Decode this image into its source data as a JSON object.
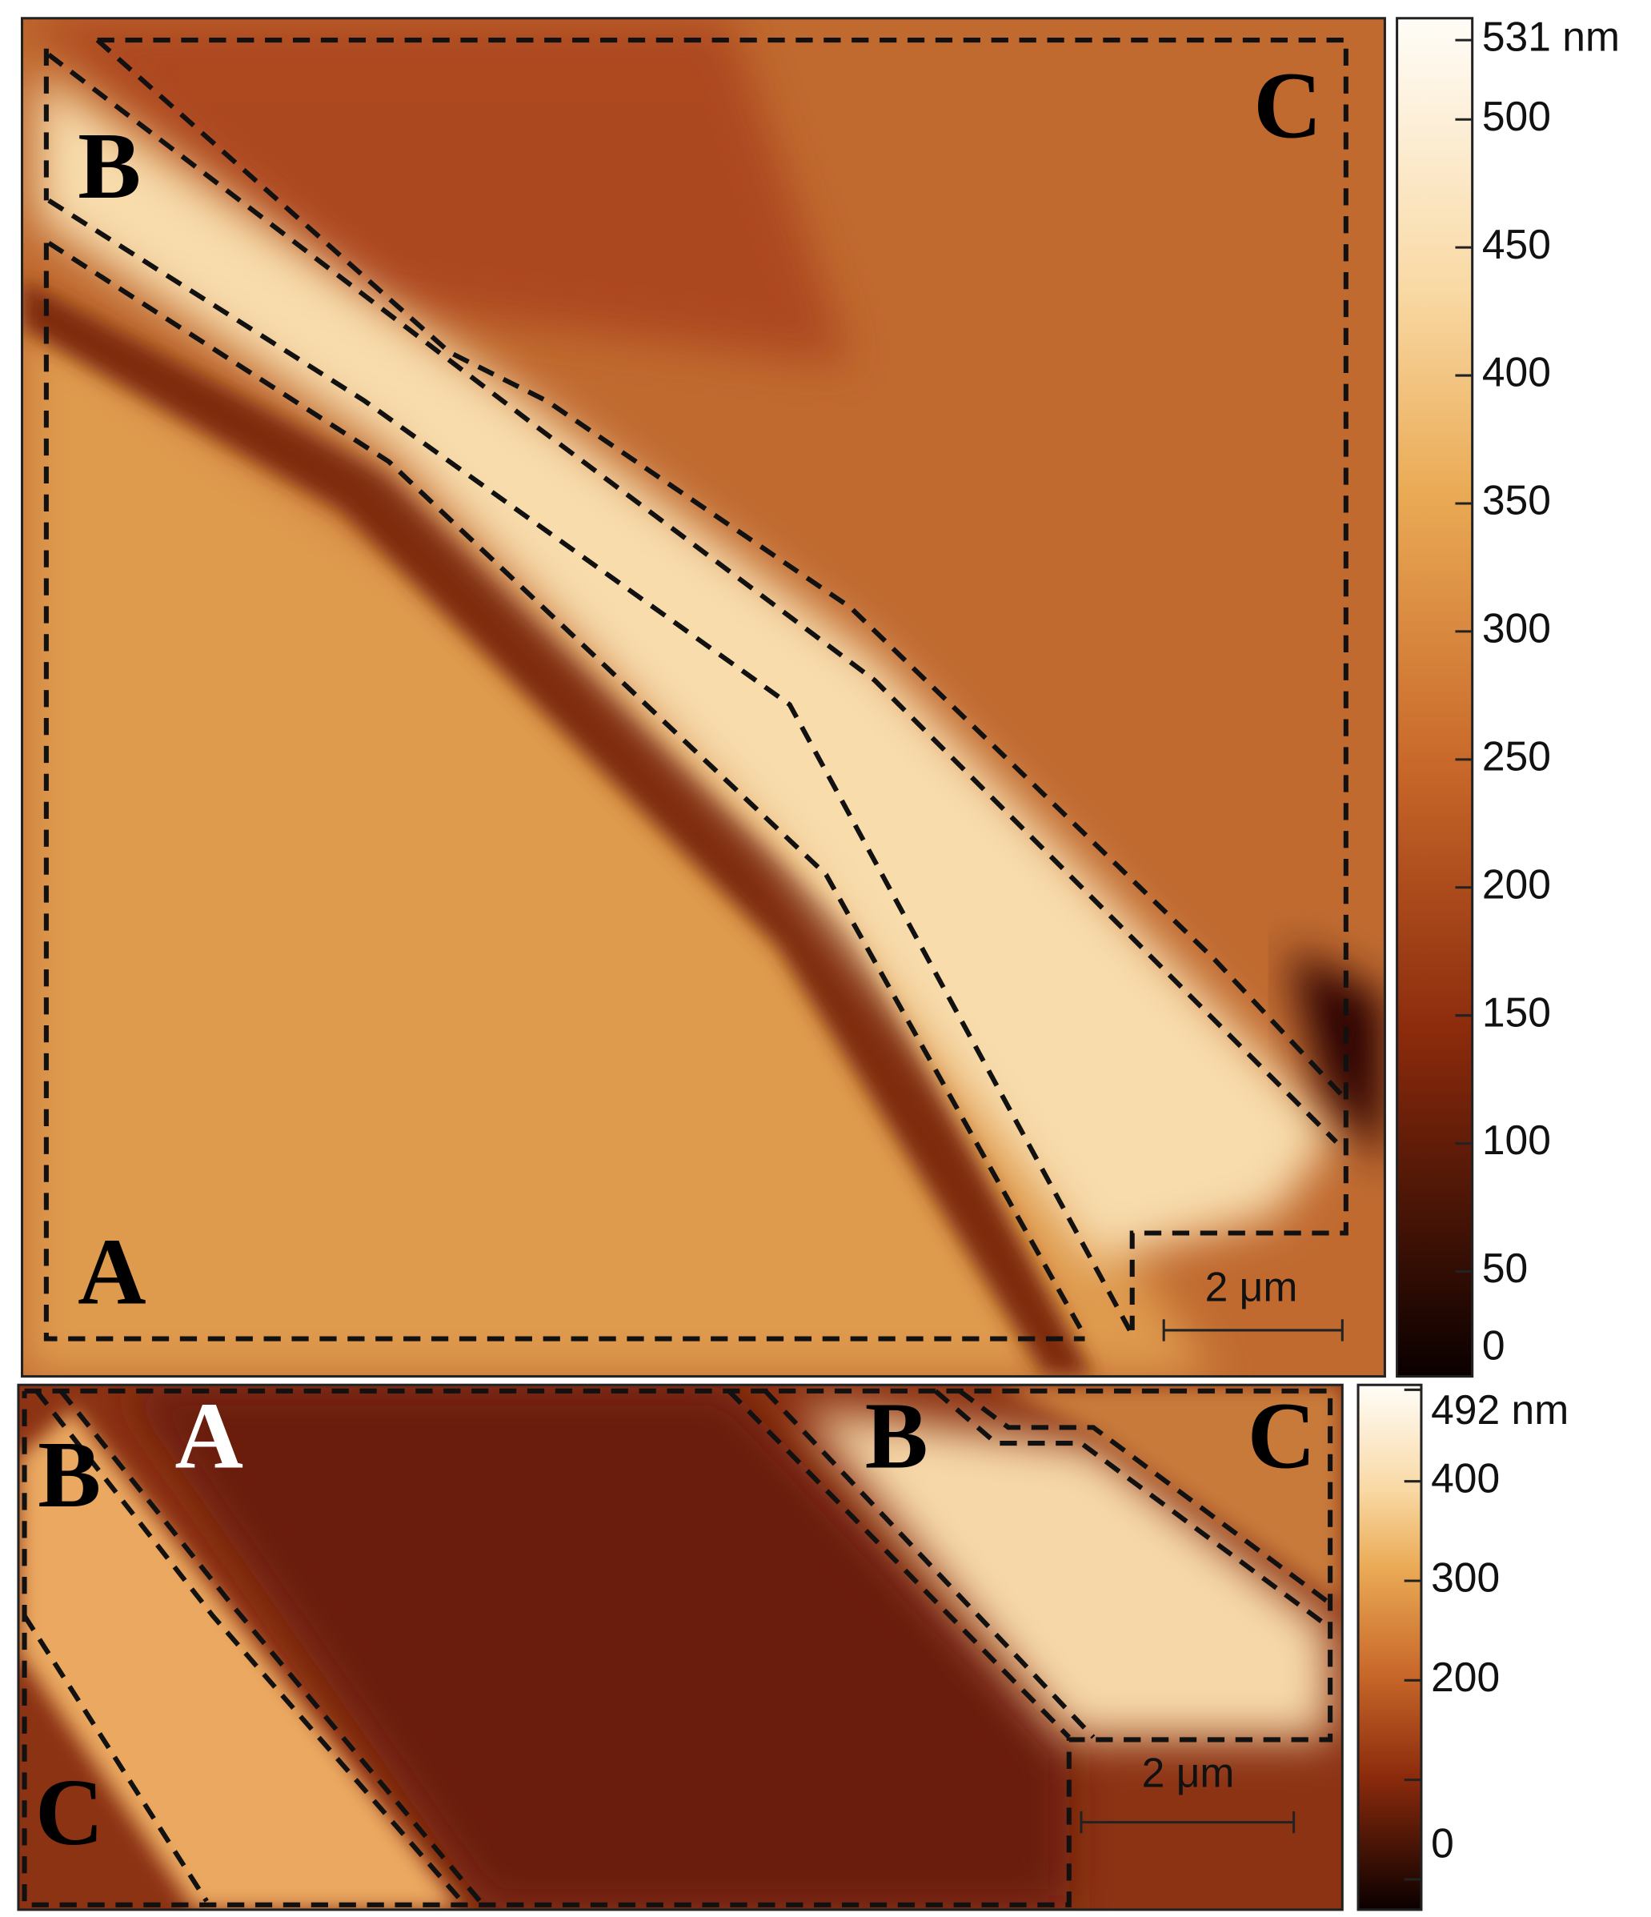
{
  "panels": [
    {
      "region_labels": [
        "A",
        "B",
        "C"
      ],
      "scale_bar": "2 μm",
      "colorbar": {
        "range": [
          0,
          531
        ],
        "ticks": [
          0,
          50,
          100,
          150,
          200,
          250,
          300,
          350,
          400,
          450,
          500,
          {
            "value": 531,
            "label": "531 nm"
          }
        ]
      }
    },
    {
      "region_labels": [
        "A",
        "B",
        "C",
        "B",
        "C"
      ],
      "scale_bar": "2 μm",
      "colorbar": {
        "range": [
          0,
          492
        ],
        "ticks": [
          0,
          200,
          300,
          400,
          {
            "value": 492,
            "label": "492 nm"
          }
        ],
        "minor_ticks": [
          100
        ]
      }
    }
  ]
}
